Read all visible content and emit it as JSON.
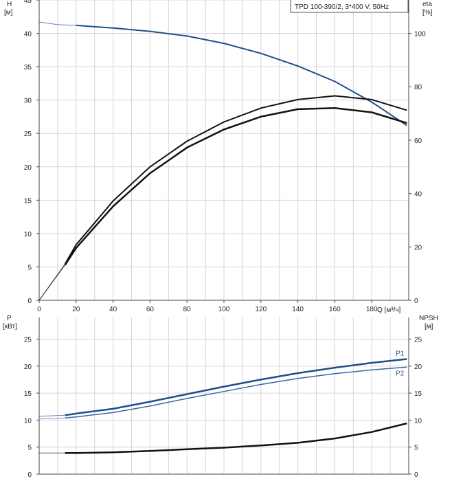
{
  "header": {
    "label": "TPD 100-390/2, 3*400 V, 50Hz"
  },
  "chart_data": [
    {
      "type": "line",
      "name": "head-efficiency",
      "y_left": {
        "label": "H",
        "unit": "[м]",
        "ylim": [
          0,
          45
        ],
        "ticks": [
          0,
          5,
          10,
          15,
          20,
          25,
          30,
          35,
          40,
          45
        ]
      },
      "y_right": {
        "label": "eta",
        "unit": "[%]",
        "ylim": [
          0,
          112.5
        ],
        "ticks": [
          0,
          20,
          40,
          60,
          80,
          100
        ]
      },
      "x": {
        "label": "Q [м³/ч]",
        "xlim": [
          0,
          200
        ],
        "ticks": [
          0,
          20,
          40,
          60,
          80,
          100,
          120,
          140,
          160,
          180
        ]
      },
      "grid": true,
      "series": [
        {
          "color": "#1c4f8c",
          "axis": "left",
          "x": [
            0,
            10,
            20,
            40,
            60,
            80,
            100,
            120,
            140,
            160,
            180,
            199
          ],
          "y": [
            41.7,
            41.3,
            41.2,
            40.8,
            40.3,
            39.6,
            38.5,
            37.0,
            35.1,
            32.8,
            29.7,
            26.2
          ],
          "extrapolated_before_x": 14
        },
        {
          "color": "#111111",
          "axis": "right",
          "x": [
            0,
            14,
            20,
            40,
            60,
            80,
            100,
            120,
            140,
            160,
            180,
            199
          ],
          "y": [
            0,
            13.6,
            20.8,
            37.2,
            50.0,
            59.6,
            66.8,
            72.0,
            75.2,
            76.6,
            75.2,
            71.2
          ],
          "extrapolated_before_x": 14
        },
        {
          "color": "#111111",
          "axis": "right",
          "width": 2.5,
          "x": [
            0,
            14,
            20,
            40,
            60,
            80,
            100,
            120,
            140,
            160,
            180,
            199
          ],
          "y": [
            0,
            13.2,
            19.6,
            35.2,
            47.6,
            57.2,
            64.0,
            68.8,
            71.6,
            72.0,
            70.4,
            66.4
          ],
          "extrapolated_before_x": 14
        }
      ]
    },
    {
      "type": "line",
      "name": "power-npsh",
      "y_left": {
        "label": "P",
        "unit": "[кВт]",
        "ylim": [
          0,
          29
        ],
        "ticks": [
          0,
          5,
          10,
          15,
          20,
          25
        ]
      },
      "y_right": {
        "label": "NPSH",
        "unit": "[м]",
        "ylim": [
          0,
          29
        ],
        "ticks": [
          0,
          5,
          10,
          15,
          20,
          25
        ]
      },
      "x": {
        "xlim": [
          0,
          200
        ]
      },
      "grid": true,
      "series": [
        {
          "name": "P1",
          "color": "#1c4f8c",
          "width": 2.5,
          "axis": "left",
          "x": [
            0,
            14,
            20,
            40,
            60,
            80,
            100,
            120,
            140,
            160,
            180,
            199
          ],
          "y": [
            10.7,
            10.9,
            11.2,
            12.1,
            13.4,
            14.8,
            16.2,
            17.5,
            18.7,
            19.7,
            20.6,
            21.3
          ],
          "extrapolated_before_x": 14
        },
        {
          "name": "P2",
          "color": "#3a66a8",
          "width": 1.5,
          "axis": "left",
          "x": [
            0,
            14,
            20,
            40,
            60,
            80,
            100,
            120,
            140,
            160,
            180,
            199
          ],
          "y": [
            10.2,
            10.4,
            10.6,
            11.4,
            12.6,
            14.0,
            15.3,
            16.6,
            17.7,
            18.6,
            19.3,
            19.8
          ],
          "extrapolated_before_x": 14
        },
        {
          "color": "#111111",
          "width": 2.5,
          "axis": "right",
          "x": [
            0,
            14,
            20,
            40,
            60,
            80,
            100,
            120,
            140,
            160,
            180,
            199
          ],
          "y": [
            3.9,
            3.9,
            3.9,
            4.05,
            4.3,
            4.6,
            4.9,
            5.3,
            5.8,
            6.6,
            7.8,
            9.4
          ],
          "extrapolated_before_x": 14
        }
      ]
    }
  ]
}
